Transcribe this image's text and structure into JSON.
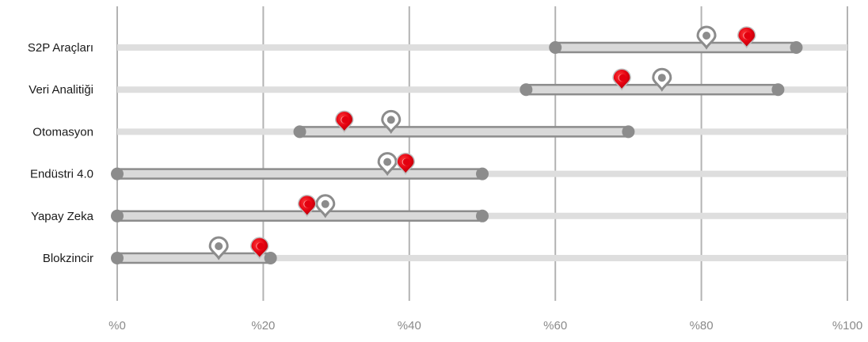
{
  "chart_data": {
    "type": "dumbbell",
    "categories": [
      "S2P Araçları",
      "Veri Analitiği",
      "Otomasyon",
      "Endüstri 4.0",
      "Yapay Zeka",
      "Blokzincir"
    ],
    "range_start": [
      60,
      56,
      25,
      0,
      0,
      0
    ],
    "range_end": [
      93,
      90.5,
      70,
      50,
      50,
      21
    ],
    "marker_gray": [
      80.7,
      74.6,
      37.5,
      37,
      28.5,
      13.9
    ],
    "marker_red": [
      86.2,
      69.1,
      31.1,
      39.5,
      26,
      19.5
    ],
    "xlim": [
      0,
      100
    ],
    "x_ticks": [
      0,
      20,
      40,
      60,
      80,
      100
    ],
    "x_tick_labels": [
      "%0",
      "%20",
      "%40",
      "%60",
      "%80",
      "%100"
    ],
    "grid": true,
    "colors": {
      "track": "#dedede",
      "range_bar": "#8c8c8c",
      "range_fill": "#d9d9d9",
      "dot": "#8c8c8c",
      "marker_gray": "#8c8c8c",
      "marker_red": "#e3000f",
      "grid": "#b3b3b3"
    }
  }
}
